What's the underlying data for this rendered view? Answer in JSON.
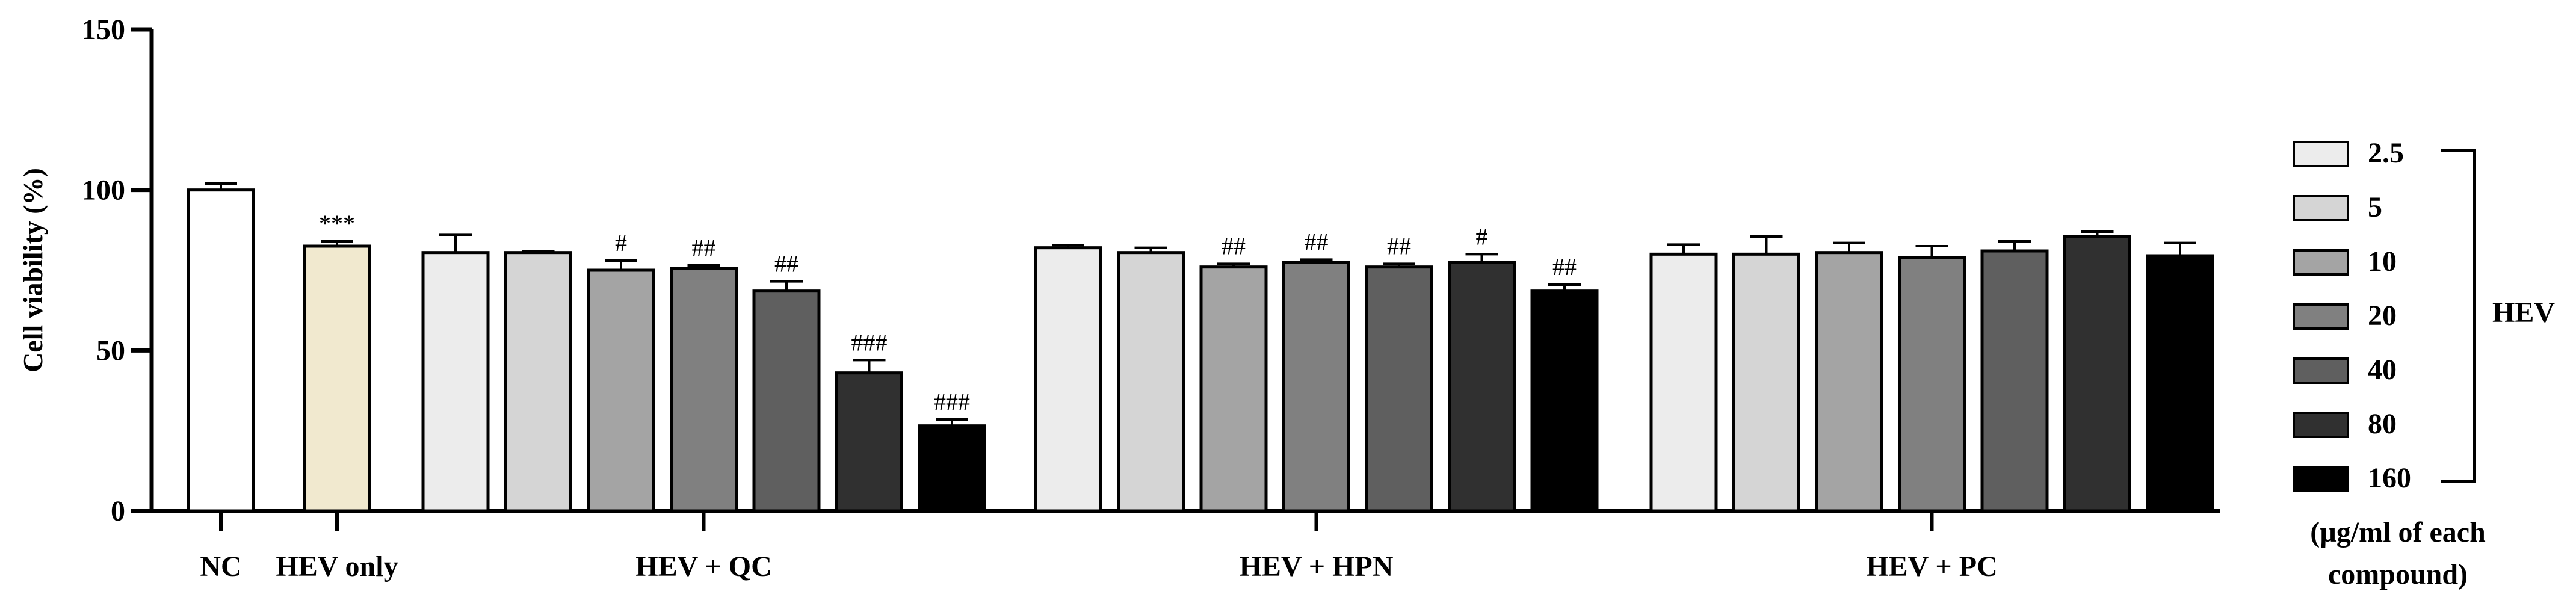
{
  "chart_data": {
    "type": "bar",
    "ylabel": "Cell viability (%)",
    "ylim": [
      0,
      150
    ],
    "yticks": [
      "0",
      "50",
      "100",
      "150"
    ],
    "legend_position": "right",
    "legend_bracket_label": "HEV",
    "legend_note": [
      "(µg/ml of each",
      "compound)"
    ],
    "doses": [
      "2.5",
      "5",
      "10",
      "20",
      "40",
      "80",
      "160"
    ],
    "dose_colors": [
      "#ececec",
      "#d5d5d5",
      "#a4a4a4",
      "#808080",
      "#5f5f5f",
      "#303030",
      "#000000"
    ],
    "controls": [
      {
        "name": "NC",
        "value": 100,
        "error": 2,
        "color": "#ffffff",
        "sig": ""
      },
      {
        "name": "HEV only",
        "value": 82.5,
        "error": 1.5,
        "color": "#f1e9cf",
        "sig": "***"
      }
    ],
    "groups": [
      {
        "name": "HEV + QC",
        "values": [
          80.5,
          80.5,
          75,
          75.5,
          68.5,
          43,
          26.5
        ],
        "errors": [
          5.5,
          0.5,
          3,
          1,
          3,
          4,
          2
        ],
        "sig": [
          "",
          "",
          "#",
          "##",
          "##",
          "###",
          "###"
        ]
      },
      {
        "name": "HEV + HPN",
        "values": [
          82,
          80.5,
          76,
          77.5,
          76,
          77.5,
          68.5
        ],
        "errors": [
          0.8,
          1.5,
          1,
          0.8,
          1,
          2.5,
          2
        ],
        "sig": [
          "",
          "",
          "##",
          "##",
          "##",
          "#",
          "##"
        ]
      },
      {
        "name": "HEV + PC",
        "values": [
          80,
          80,
          80.5,
          79,
          81,
          85.5,
          79.5
        ],
        "errors": [
          3,
          5.5,
          3,
          3.5,
          3,
          1.5,
          4
        ],
        "sig": [
          "",
          "",
          "",
          "",
          "",
          "",
          ""
        ]
      }
    ]
  }
}
